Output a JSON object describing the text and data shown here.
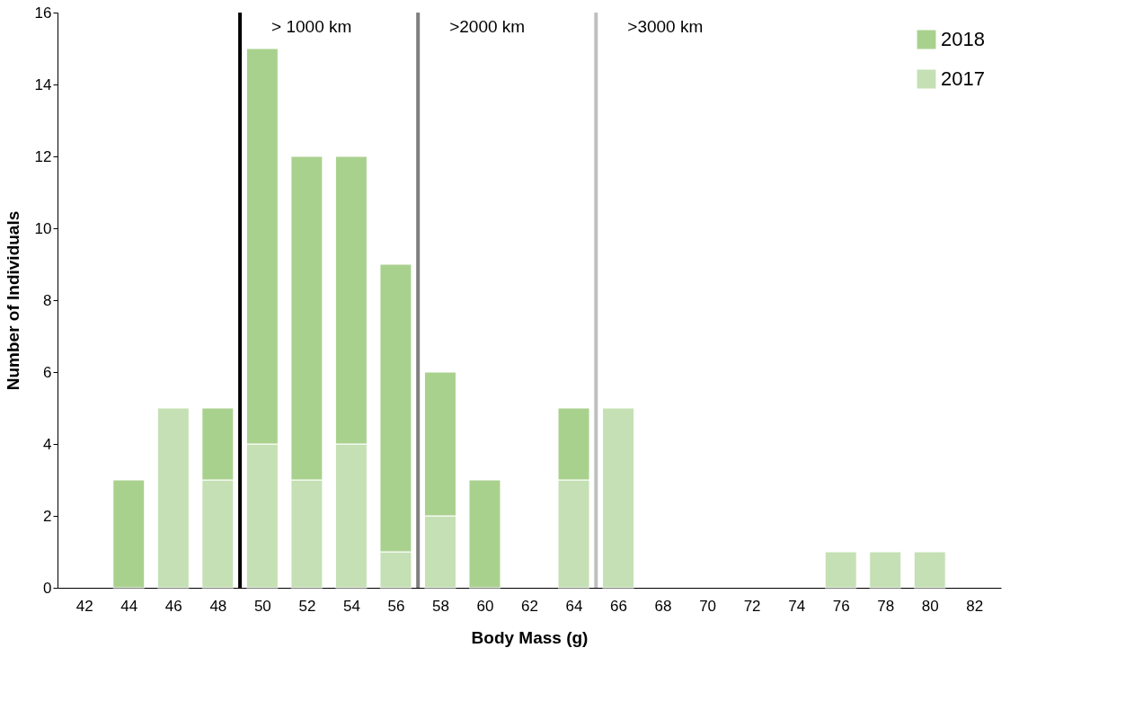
{
  "chart_data": {
    "type": "bar",
    "stacked": true,
    "xlabel": "Body Mass (g)",
    "ylabel": "Number of Individuals",
    "x": [
      42,
      44,
      46,
      48,
      50,
      52,
      54,
      56,
      58,
      60,
      62,
      64,
      66,
      68,
      70,
      72,
      74,
      76,
      78,
      80,
      82
    ],
    "series": [
      {
        "name": "2017",
        "color": "#c5e0b4",
        "values": [
          0,
          0,
          5,
          3,
          4,
          3,
          4,
          1,
          2,
          0,
          0,
          3,
          5,
          0,
          0,
          0,
          0,
          1,
          1,
          1,
          0
        ]
      },
      {
        "name": "2018",
        "color": "#a9d18e",
        "values": [
          0,
          3,
          0,
          2,
          11,
          9,
          8,
          8,
          4,
          3,
          0,
          2,
          0,
          0,
          0,
          0,
          0,
          0,
          0,
          0,
          0
        ]
      }
    ],
    "xlim": [
      41,
      83
    ],
    "xticks": [
      42,
      44,
      46,
      48,
      50,
      52,
      54,
      56,
      58,
      60,
      62,
      64,
      66,
      68,
      70,
      72,
      74,
      76,
      78,
      80,
      82
    ],
    "ylim": [
      0,
      16
    ],
    "yticks": [
      0,
      2,
      4,
      6,
      8,
      10,
      12,
      14,
      16
    ],
    "grid": false,
    "legend": "top right",
    "ref_lines": [
      {
        "axis": "x",
        "value": 49,
        "label": "> 1000 km",
        "color": "#000000"
      },
      {
        "axis": "x",
        "value": 57,
        "label": ">2000 km",
        "color": "#808080"
      },
      {
        "axis": "x",
        "value": 65,
        "label": ">3000 km",
        "color": "#bfbfbf"
      }
    ]
  }
}
